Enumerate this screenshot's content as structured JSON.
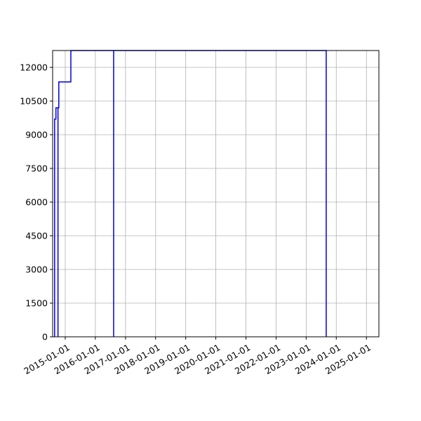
{
  "chart_data": {
    "type": "line",
    "title": "",
    "xlabel": "",
    "ylabel": "",
    "grid": true,
    "legend": "none",
    "colors": {
      "series": "#0000dd",
      "grid": "#b0b0b0",
      "axis": "#000000"
    },
    "xlim": [
      "2014-08-01",
      "2025-06-01"
    ],
    "ylim": [
      0,
      12750
    ],
    "x_ticks": [
      "2015-01-01",
      "2016-01-01",
      "2017-01-01",
      "2018-01-01",
      "2019-01-01",
      "2020-01-01",
      "2021-01-01",
      "2022-01-01",
      "2023-01-01",
      "2024-01-01",
      "2025-01-01"
    ],
    "y_ticks": [
      0,
      1500,
      3000,
      4500,
      6000,
      7500,
      9000,
      10500,
      12000
    ],
    "series": [
      {
        "name": "",
        "points": [
          {
            "x": "2014-08-25",
            "y": 0
          },
          {
            "x": "2014-08-25",
            "y": 9700
          },
          {
            "x": "2014-09-10",
            "y": 9700
          },
          {
            "x": "2014-09-10",
            "y": 10200
          },
          {
            "x": "2014-10-05",
            "y": 10200
          },
          {
            "x": "2014-10-05",
            "y": 0
          },
          {
            "x": "2014-10-05",
            "y": 10200
          },
          {
            "x": "2014-10-15",
            "y": 10200
          },
          {
            "x": "2014-10-15",
            "y": 11350
          },
          {
            "x": "2015-03-10",
            "y": 11350
          },
          {
            "x": "2015-03-10",
            "y": 12750
          },
          {
            "x": "2016-08-10",
            "y": 12750
          },
          {
            "x": "2016-08-10",
            "y": 0
          },
          {
            "x": "2016-08-10",
            "y": 12750
          },
          {
            "x": "2023-09-01",
            "y": 12750
          },
          {
            "x": "2023-09-01",
            "y": 0
          }
        ]
      }
    ]
  }
}
